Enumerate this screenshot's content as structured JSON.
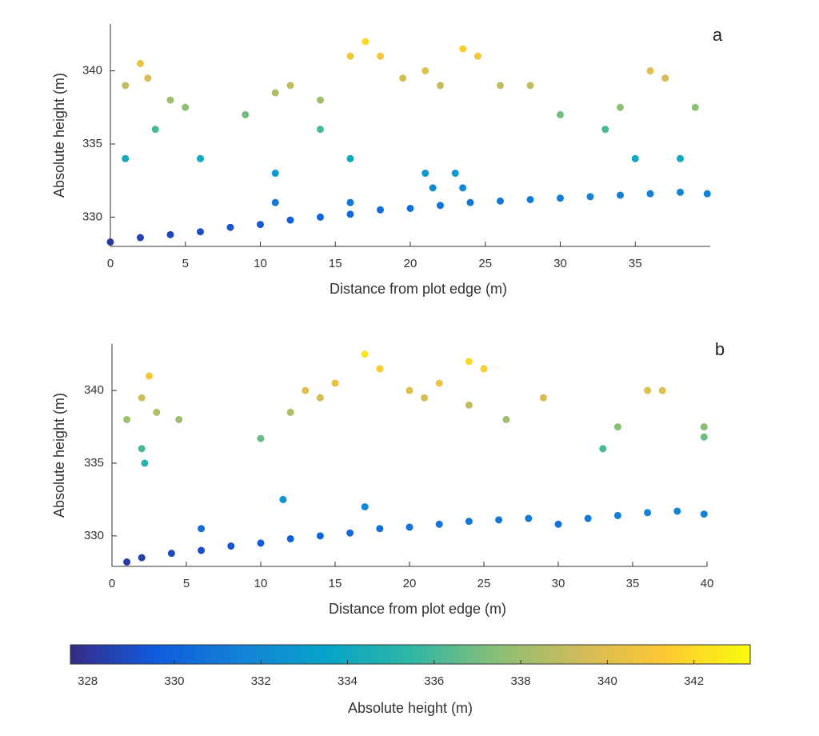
{
  "chart_data": [
    {
      "type": "scatter",
      "panel_label": "a",
      "xlabel": "Distance from plot edge (m)",
      "ylabel": "Absolute height (m)",
      "xlim": [
        0,
        40
      ],
      "ylim": [
        328,
        343.2
      ],
      "xticks": [
        0,
        5,
        10,
        15,
        20,
        25,
        30,
        35
      ],
      "yticks": [
        330,
        335,
        340
      ],
      "x": [
        0,
        2,
        4,
        6,
        8,
        10,
        12,
        14,
        16,
        18,
        20,
        22,
        24,
        26,
        28,
        30,
        32,
        34,
        36,
        38,
        39.8,
        2,
        2.5,
        1,
        4,
        5,
        9,
        11,
        12,
        14,
        16,
        17,
        18,
        19.5,
        21,
        22,
        23.5,
        24.5,
        26,
        28,
        30,
        33,
        34,
        36,
        37,
        39,
        3,
        1,
        11,
        16,
        21,
        23,
        6,
        14,
        35,
        38,
        11,
        16,
        21.5,
        23.5
      ],
      "y": [
        328.3,
        328.6,
        328.8,
        329,
        329.3,
        329.5,
        329.8,
        330,
        330.2,
        330.5,
        330.6,
        330.8,
        331,
        331.1,
        331.2,
        331.3,
        331.4,
        331.5,
        331.6,
        331.7,
        331.6,
        340.5,
        339.5,
        339,
        338,
        337.5,
        337,
        338.5,
        339,
        338,
        341,
        342,
        341,
        339.5,
        340,
        339,
        341.5,
        341,
        339,
        339,
        337,
        336,
        337.5,
        340,
        339.5,
        337.5,
        336,
        334,
        333,
        334,
        333,
        333,
        334,
        336,
        334,
        334,
        331,
        331,
        332,
        332
      ]
    },
    {
      "type": "scatter",
      "panel_label": "b",
      "xlabel": "Distance from plot edge (m)",
      "ylabel": "Absolute height (m)",
      "xlim": [
        0,
        40
      ],
      "ylim": [
        327.9,
        343.2
      ],
      "xticks": [
        0,
        5,
        10,
        15,
        20,
        25,
        30,
        35,
        40
      ],
      "yticks": [
        330,
        335,
        340
      ],
      "x": [
        1,
        2,
        4,
        6,
        8,
        10,
        12,
        14,
        16,
        18,
        20,
        22,
        24,
        26,
        28,
        30,
        32,
        34,
        36,
        38,
        39.8,
        11.5,
        17,
        6,
        1,
        2,
        2.5,
        3,
        4.5,
        2,
        2.2,
        10,
        12,
        13,
        14,
        15,
        17,
        18,
        20,
        21,
        22,
        24,
        25,
        24,
        26.5,
        29,
        33,
        34,
        36,
        37,
        39.8,
        39.8
      ],
      "y": [
        328.2,
        328.5,
        328.8,
        329,
        329.3,
        329.5,
        329.8,
        330,
        330.2,
        330.5,
        330.6,
        330.8,
        331,
        331.1,
        331.2,
        330.8,
        331.2,
        331.4,
        331.6,
        331.7,
        331.5,
        332.5,
        332,
        330.5,
        338,
        339.5,
        341,
        338.5,
        338,
        336,
        335,
        336.7,
        338.5,
        340,
        339.5,
        340.5,
        342.5,
        341.5,
        340,
        339.5,
        340.5,
        342,
        341.5,
        339,
        338,
        339.5,
        336,
        337.5,
        340,
        340,
        337.5,
        336.8
      ]
    },
    {
      "type": "colorbar",
      "label": "Absolute height (m)",
      "clim": [
        327.6,
        343.3
      ],
      "ticks": [
        328,
        330,
        332,
        334,
        336,
        338,
        340,
        342
      ],
      "colormap": [
        "#352a87",
        "#0f5cdd",
        "#1481d6",
        "#06a4ca",
        "#2eb7a4",
        "#87bf77",
        "#d1bb59",
        "#fec832",
        "#f9fb0e"
      ]
    }
  ]
}
